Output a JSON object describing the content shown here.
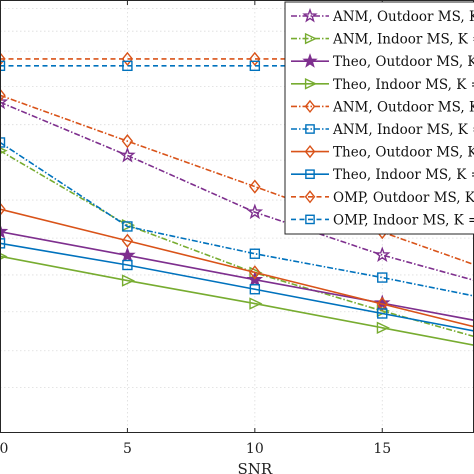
{
  "chart_data": {
    "type": "line",
    "title": "",
    "xlabel": "SNR",
    "ylabel": "",
    "x_ticks": [
      0,
      5,
      10,
      15
    ],
    "x_tick_labels": [
      "0",
      "5",
      "10",
      "15"
    ],
    "xlim": [
      0,
      18.6
    ],
    "ylim": [
      0,
      100
    ],
    "y_scale_note": "y tick labels not visible in crop",
    "grid": true,
    "legend_position": "top-right",
    "series": [
      {
        "name": "ANM, Outdoor MS, K =",
        "color": "#7E2F8E",
        "dash": "6 2 1.5 2",
        "marker": "star",
        "marker_fill": "outline",
        "x": [
          0,
          5,
          10,
          15,
          20
        ],
        "y": [
          76.4,
          64.1,
          51.0,
          41.1,
          33.0
        ]
      },
      {
        "name": "ANM, Indoor MS, K =",
        "color": "#77AC30",
        "dash": "6 2 1.5 2",
        "marker": "triangle-right",
        "marker_fill": "outline",
        "x": [
          0,
          5,
          10,
          15,
          20
        ],
        "y": [
          65.2,
          48.0,
          37.0,
          28.2,
          20.0
        ]
      },
      {
        "name": "Theo, Outdoor MS, K =",
        "color": "#7E2F8E",
        "dash": "",
        "marker": "star",
        "marker_fill": "filled",
        "x": [
          0,
          5,
          10,
          15,
          20
        ],
        "y": [
          46.5,
          41.0,
          35.4,
          30.0,
          24.5
        ]
      },
      {
        "name": "Theo, Indoor MS, K =",
        "color": "#77AC30",
        "dash": "",
        "marker": "triangle-right",
        "marker_fill": "outline",
        "x": [
          0,
          5,
          10,
          15,
          20
        ],
        "y": [
          40.8,
          35.2,
          29.9,
          24.3,
          18.7
        ]
      },
      {
        "name": "ANM, Outdoor MS, K =",
        "color": "#D95319",
        "dash": "6 2 1.5 2",
        "marker": "diamond",
        "marker_fill": "outline",
        "x": [
          0,
          5,
          10,
          15,
          20
        ],
        "y": [
          78.0,
          67.4,
          56.9,
          46.4,
          36.0
        ]
      },
      {
        "name": "ANM, Indoor MS, K =",
        "color": "#0072BD",
        "dash": "6 2 1.5 2",
        "marker": "square",
        "marker_fill": "outline",
        "x": [
          0,
          5,
          10,
          15,
          20
        ],
        "y": [
          67.1,
          47.7,
          41.4,
          35.9,
          30.0
        ]
      },
      {
        "name": "Theo, Outdoor MS, K =",
        "color": "#D95319",
        "dash": "",
        "marker": "diamond",
        "marker_fill": "outline",
        "x": [
          0,
          5,
          10,
          15,
          20
        ],
        "y": [
          51.7,
          44.4,
          37.1,
          29.8,
          22.5
        ]
      },
      {
        "name": "Theo, Indoor MS, K =",
        "color": "#0072BD",
        "dash": "",
        "marker": "square",
        "marker_fill": "outline",
        "x": [
          0,
          5,
          10,
          15,
          20
        ],
        "y": [
          43.8,
          38.8,
          33.2,
          27.6,
          22.0
        ]
      },
      {
        "name": "OMP, Outdoor MS, K =",
        "color": "#D95319",
        "dash": "5 3.5",
        "marker": "diamond",
        "marker_fill": "outline",
        "x": [
          0,
          5,
          10,
          15,
          20
        ],
        "y": [
          86.4,
          86.4,
          86.4,
          86.4,
          86.4
        ]
      },
      {
        "name": "OMP, Indoor MS, K =",
        "color": "#0072BD",
        "dash": "5 3.5",
        "marker": "square",
        "marker_fill": "outline",
        "x": [
          0,
          5,
          10,
          15,
          20
        ],
        "y": [
          84.8,
          84.8,
          84.8,
          84.8,
          84.8
        ]
      }
    ]
  }
}
